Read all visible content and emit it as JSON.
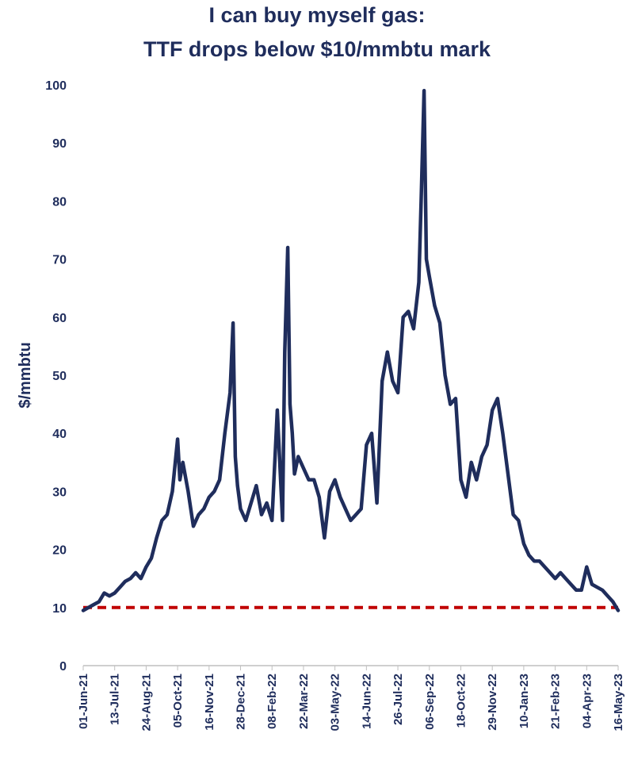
{
  "chart_data": {
    "type": "line",
    "title_lines": [
      "I can buy myself gas:",
      "TTF drops below $10/mmbtu mark"
    ],
    "ylabel": "$/mmbtu",
    "xlabel": "",
    "ylim": [
      0,
      100
    ],
    "y_ticks": [
      0,
      10,
      20,
      30,
      40,
      50,
      60,
      70,
      80,
      90,
      100
    ],
    "x_tick_labels": [
      "01-Jun-21",
      "13-Jul-21",
      "24-Aug-21",
      "05-Oct-21",
      "16-Nov-21",
      "28-Dec-21",
      "08-Feb-22",
      "22-Mar-22",
      "03-May-22",
      "14-Jun-22",
      "26-Jul-22",
      "06-Sep-22",
      "18-Oct-22",
      "29-Nov-22",
      "10-Jan-23",
      "21-Feb-23",
      "04-Apr-23",
      "16-May-23"
    ],
    "x_range": [
      "01-Jun-21",
      "16-May-23"
    ],
    "grid": false,
    "colors": {
      "series": "#1f2d5c",
      "threshold": "#c00000",
      "text": "#1f2d5c"
    },
    "threshold": {
      "value": 10,
      "style": "dashed"
    },
    "series": [
      {
        "x": [
          "01-Jun-21",
          "08-Jun-21",
          "15-Jun-21",
          "22-Jun-21",
          "29-Jun-21",
          "06-Jul-21",
          "13-Jul-21",
          "20-Jul-21",
          "27-Jul-21",
          "03-Aug-21",
          "10-Aug-21",
          "17-Aug-21",
          "24-Aug-21",
          "31-Aug-21",
          "07-Sep-21",
          "14-Sep-21",
          "21-Sep-21",
          "28-Sep-21",
          "05-Oct-21",
          "08-Oct-21",
          "12-Oct-21",
          "19-Oct-21",
          "26-Oct-21",
          "02-Nov-21",
          "09-Nov-21",
          "16-Nov-21",
          "23-Nov-21",
          "30-Nov-21",
          "07-Dec-21",
          "14-Dec-21",
          "18-Dec-21",
          "21-Dec-21",
          "24-Dec-21",
          "28-Dec-21",
          "04-Jan-22",
          "11-Jan-22",
          "18-Jan-22",
          "25-Jan-22",
          "01-Feb-22",
          "08-Feb-22",
          "15-Feb-22",
          "22-Feb-22",
          "25-Feb-22",
          "01-Mar-22",
          "04-Mar-22",
          "07-Mar-22",
          "10-Mar-22",
          "15-Mar-22",
          "22-Mar-22",
          "29-Mar-22",
          "05-Apr-22",
          "12-Apr-22",
          "19-Apr-22",
          "26-Apr-22",
          "03-May-22",
          "10-May-22",
          "17-May-22",
          "24-May-22",
          "31-May-22",
          "07-Jun-22",
          "14-Jun-22",
          "21-Jun-22",
          "28-Jun-22",
          "05-Jul-22",
          "12-Jul-22",
          "19-Jul-22",
          "26-Jul-22",
          "02-Aug-22",
          "09-Aug-22",
          "16-Aug-22",
          "23-Aug-22",
          "26-Aug-22",
          "30-Aug-22",
          "02-Sep-22",
          "06-Sep-22",
          "13-Sep-22",
          "20-Sep-22",
          "27-Sep-22",
          "04-Oct-22",
          "11-Oct-22",
          "18-Oct-22",
          "25-Oct-22",
          "01-Nov-22",
          "08-Nov-22",
          "15-Nov-22",
          "22-Nov-22",
          "29-Nov-22",
          "06-Dec-22",
          "13-Dec-22",
          "20-Dec-22",
          "27-Dec-22",
          "03-Jan-23",
          "10-Jan-23",
          "17-Jan-23",
          "24-Jan-23",
          "31-Jan-23",
          "07-Feb-23",
          "14-Feb-23",
          "21-Feb-23",
          "28-Feb-23",
          "07-Mar-23",
          "14-Mar-23",
          "21-Mar-23",
          "28-Mar-23",
          "04-Apr-23",
          "11-Apr-23",
          "18-Apr-23",
          "25-Apr-23",
          "02-May-23",
          "09-May-23",
          "16-May-23"
        ],
        "values": [
          9.5,
          10,
          10.5,
          11,
          12.5,
          12,
          12.5,
          13.5,
          14.5,
          15,
          16,
          15,
          17,
          18.5,
          22,
          25,
          26,
          30,
          39,
          32,
          35,
          30,
          24,
          26,
          27,
          29,
          30,
          32,
          40,
          47,
          59,
          36,
          31,
          27,
          25,
          28,
          31,
          26,
          28,
          25,
          44,
          25,
          54,
          72,
          45,
          40,
          33,
          36,
          34,
          32,
          32,
          29,
          22,
          30,
          32,
          29,
          27,
          25,
          26,
          27,
          38,
          40,
          28,
          49,
          54,
          49,
          47,
          60,
          61,
          58,
          66,
          80,
          99,
          70,
          67,
          62,
          59,
          50,
          45,
          46,
          32,
          29,
          35,
          32,
          36,
          38,
          44,
          46,
          40,
          33,
          26,
          25,
          21,
          19,
          18,
          18,
          17,
          16,
          15,
          16,
          15,
          14,
          13,
          13,
          17,
          14,
          13.5,
          13,
          12,
          11,
          9.5
        ]
      }
    ]
  }
}
